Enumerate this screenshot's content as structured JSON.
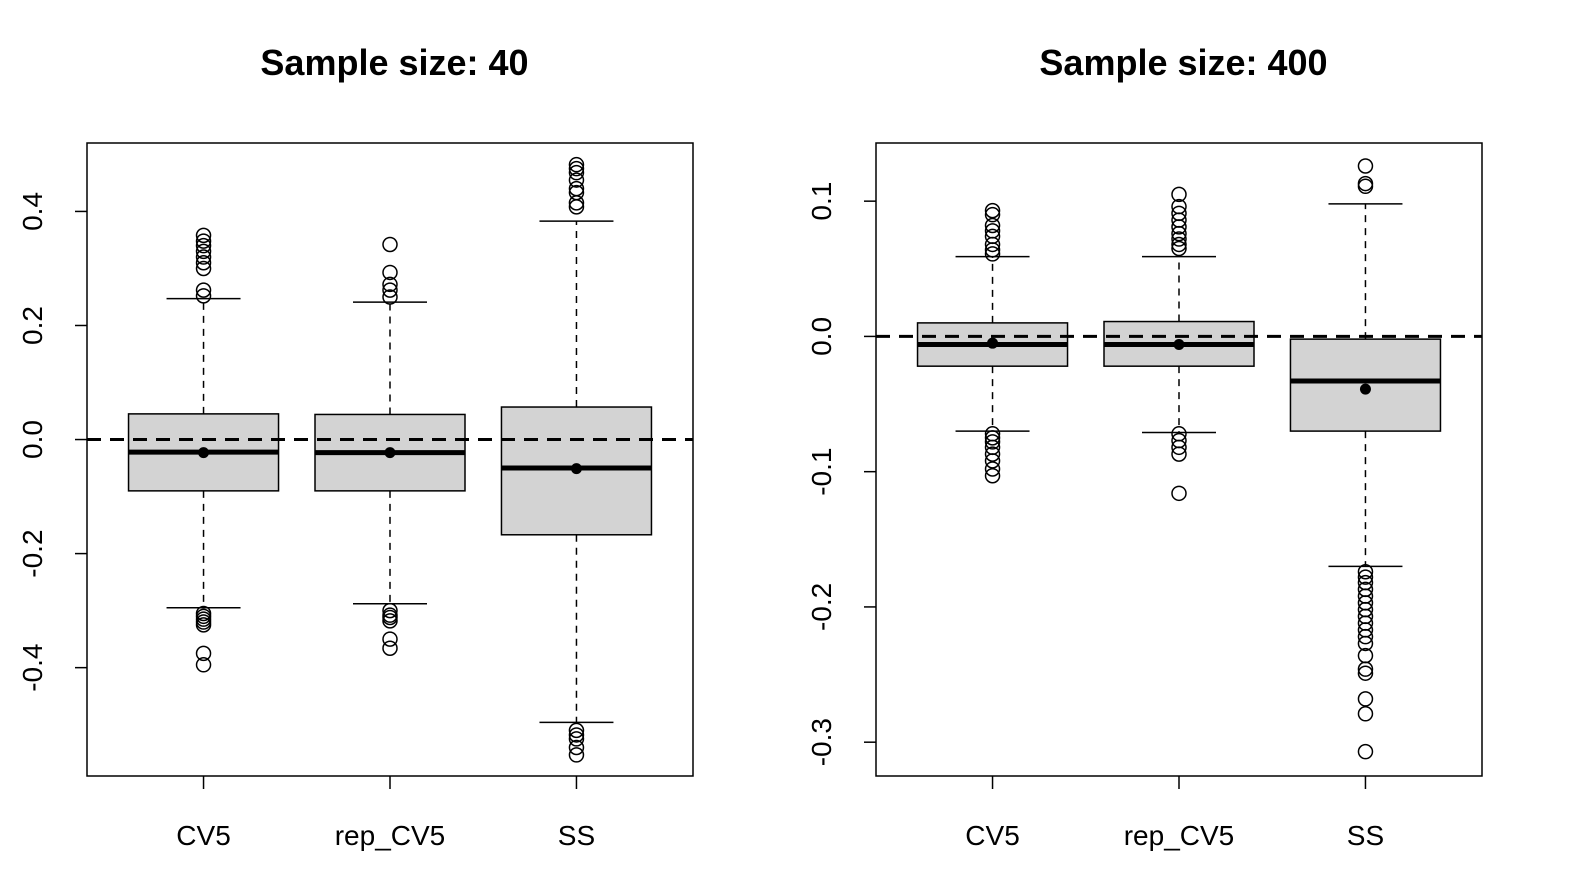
{
  "chart_data": [
    {
      "type": "box",
      "title": "Sample size: 40",
      "categories": [
        "CV5",
        "rep_CV5",
        "SS"
      ],
      "ylim": [
        -0.59,
        0.52
      ],
      "yticks": [
        -0.4,
        -0.2,
        0.0,
        0.2,
        0.4
      ],
      "ytick_labels": [
        "-0.4",
        "-0.2",
        "0.0",
        "0.2",
        "0.4"
      ],
      "reference_line": 0.0,
      "reference_line_style": "dashed",
      "box_fill": "#d3d3d3",
      "boxes": [
        {
          "category": "CV5",
          "whisker_low": -0.295,
          "q1": -0.09,
          "median": -0.022,
          "q3": 0.045,
          "whisker_high": 0.247,
          "mean": -0.023,
          "outliers": [
            0.358,
            0.348,
            0.34,
            0.33,
            0.32,
            0.31,
            0.3,
            0.262,
            0.252,
            -0.305,
            -0.31,
            -0.315,
            -0.32,
            -0.325,
            -0.375,
            -0.395
          ]
        },
        {
          "category": "rep_CV5",
          "whisker_low": -0.288,
          "q1": -0.09,
          "median": -0.023,
          "q3": 0.044,
          "whisker_high": 0.241,
          "mean": -0.023,
          "outliers": [
            0.342,
            0.293,
            0.272,
            0.262,
            0.25,
            -0.3,
            -0.308,
            -0.312,
            -0.318,
            -0.35,
            -0.366
          ]
        },
        {
          "category": "SS",
          "whisker_low": -0.496,
          "q1": -0.167,
          "median": -0.05,
          "q3": 0.057,
          "whisker_high": 0.383,
          "mean": -0.051,
          "outliers": [
            0.482,
            0.475,
            0.468,
            0.455,
            0.44,
            0.433,
            0.415,
            0.408,
            -0.51,
            -0.518,
            -0.525,
            -0.54,
            -0.553
          ]
        }
      ]
    },
    {
      "type": "box",
      "title": "Sample size: 400",
      "categories": [
        "CV5",
        "rep_CV5",
        "SS"
      ],
      "ylim": [
        -0.325,
        0.143
      ],
      "yticks": [
        -0.3,
        -0.2,
        -0.1,
        0.0,
        0.1
      ],
      "ytick_labels": [
        "-0.3",
        "-0.2",
        "-0.1",
        "0.0",
        "0.1"
      ],
      "reference_line": 0.0,
      "reference_line_style": "dashed",
      "box_fill": "#d3d3d3",
      "boxes": [
        {
          "category": "CV5",
          "whisker_low": -0.07,
          "q1": -0.022,
          "median": -0.006,
          "q3": 0.01,
          "whisker_high": 0.059,
          "mean": -0.005,
          "outliers": [
            0.093,
            0.09,
            0.082,
            0.078,
            0.074,
            0.068,
            0.064,
            0.061,
            -0.072,
            -0.075,
            -0.078,
            -0.082,
            -0.087,
            -0.092,
            -0.098,
            -0.103
          ]
        },
        {
          "category": "rep_CV5",
          "whisker_low": -0.071,
          "q1": -0.022,
          "median": -0.006,
          "q3": 0.011,
          "whisker_high": 0.059,
          "mean": -0.006,
          "outliers": [
            0.105,
            0.096,
            0.091,
            0.086,
            0.081,
            0.076,
            0.072,
            0.068,
            0.065,
            -0.072,
            -0.077,
            -0.082,
            -0.087,
            -0.116
          ]
        },
        {
          "category": "SS",
          "whisker_low": -0.17,
          "q1": -0.07,
          "median": -0.033,
          "q3": -0.002,
          "whisker_high": 0.098,
          "mean": -0.039,
          "outliers": [
            0.126,
            0.113,
            0.111,
            -0.174,
            -0.178,
            -0.182,
            -0.187,
            -0.192,
            -0.197,
            -0.202,
            -0.207,
            -0.212,
            -0.217,
            -0.222,
            -0.227,
            -0.236,
            -0.246,
            -0.249,
            -0.268,
            -0.279,
            -0.307
          ]
        }
      ]
    }
  ]
}
